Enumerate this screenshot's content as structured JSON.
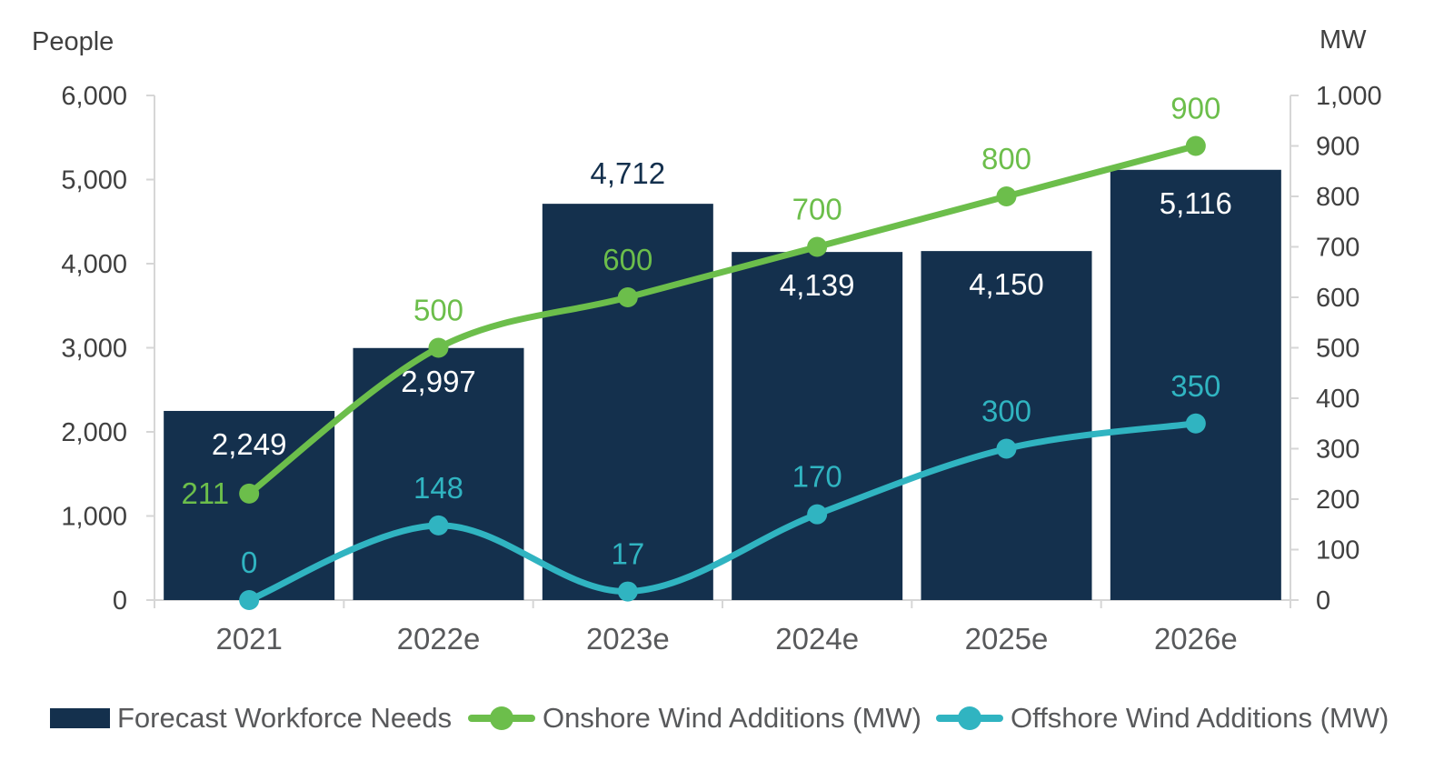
{
  "axes": {
    "left_title": "People",
    "right_title": "MW",
    "left_ticks": [
      "0",
      "1,000",
      "2,000",
      "3,000",
      "4,000",
      "5,000",
      "6,000"
    ],
    "left_tick_values": [
      0,
      1000,
      2000,
      3000,
      4000,
      5000,
      6000
    ],
    "right_ticks": [
      "0",
      "100",
      "200",
      "300",
      "400",
      "500",
      "600",
      "700",
      "800",
      "900",
      "1,000"
    ],
    "right_tick_values": [
      0,
      100,
      200,
      300,
      400,
      500,
      600,
      700,
      800,
      900,
      1000
    ]
  },
  "chart_data": {
    "type": "combo-bar-line",
    "categories": [
      "2021",
      "2022e",
      "2023e",
      "2024e",
      "2025e",
      "2026e"
    ],
    "ylim_left": [
      0,
      6000
    ],
    "ylim_right": [
      0,
      1000
    ],
    "grid": false,
    "legend_position": "bottom",
    "bar_series": {
      "name": "Forecast Workforce Needs",
      "axis": "left",
      "color": "#14304d",
      "values": [
        2249,
        2997,
        4712,
        4139,
        4150,
        5116
      ],
      "labels": [
        "2,249",
        "2,997",
        "4,712",
        "4,139",
        "4,150",
        "5,116"
      ],
      "label_inside": [
        true,
        true,
        false,
        true,
        true,
        true
      ]
    },
    "line_series": [
      {
        "name": "Onshore Wind Additions (MW)",
        "axis": "right",
        "color": "#6cbe4b",
        "values": [
          211,
          500,
          600,
          700,
          800,
          900
        ],
        "labels": [
          "211",
          "500",
          "600",
          "700",
          "800",
          "900"
        ],
        "first_label_side": "left"
      },
      {
        "name": "Offshore Wind Additions (MW)",
        "axis": "right",
        "color": "#30b4c1",
        "values": [
          0,
          148,
          17,
          170,
          300,
          350
        ],
        "labels": [
          "0",
          "148",
          "17",
          "170",
          "300",
          "350"
        ],
        "first_label_side": "above"
      }
    ]
  },
  "legend": {
    "items": [
      {
        "label": "Forecast Workforce Needs",
        "color": "#14304d",
        "marker": "bar"
      },
      {
        "label": "Onshore Wind Additions (MW)",
        "color": "#6cbe4b",
        "marker": "line-dot"
      },
      {
        "label": "Offshore Wind Additions (MW)",
        "color": "#30b4c1",
        "marker": "line-dot"
      }
    ]
  },
  "colors": {
    "bar_navy": "#14304d",
    "onshore_green": "#6cbe4b",
    "offshore_teal": "#30b4c1",
    "axis_line": "#d6d6d6",
    "tick_text": "#404040",
    "x_label_text": "#58595b",
    "legend_text": "#58595b",
    "background": "#ffffff"
  }
}
